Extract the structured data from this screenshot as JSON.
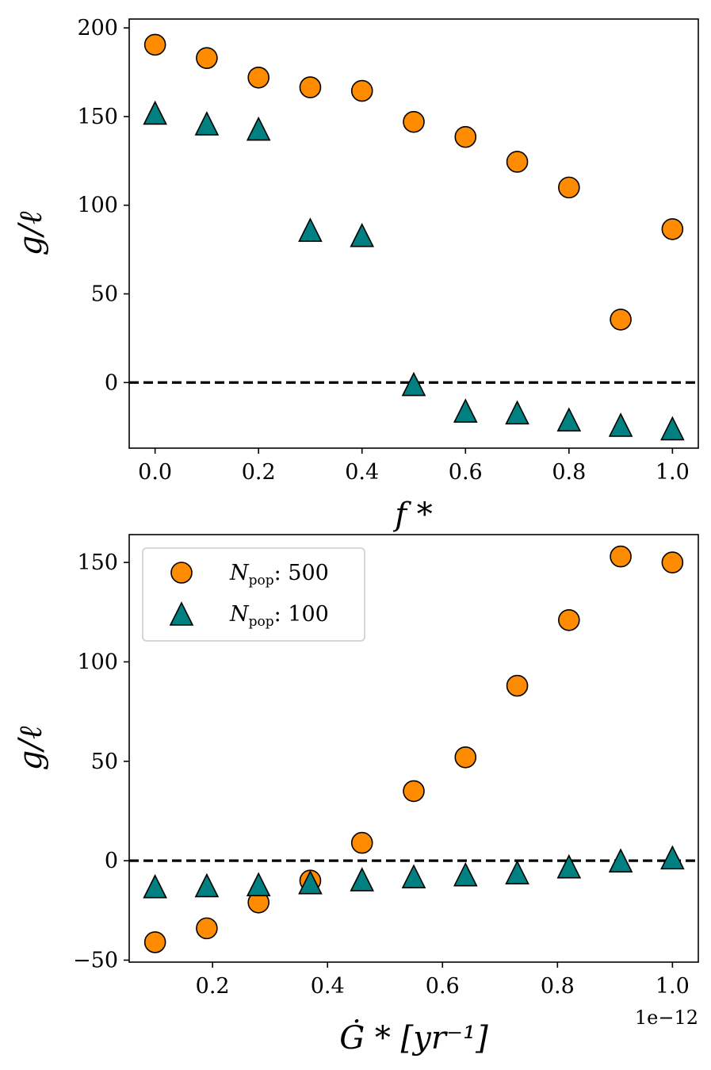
{
  "chart_data": [
    {
      "type": "scatter",
      "xlabel": "f *",
      "ylabel": "g/ℓ",
      "xlim": [
        -0.05,
        1.05
      ],
      "ylim": [
        -37,
        205
      ],
      "xticks": [
        0.0,
        0.2,
        0.4,
        0.6,
        0.8,
        1.0
      ],
      "xtick_labels": [
        "0.0",
        "0.2",
        "0.4",
        "0.6",
        "0.8",
        "1.0"
      ],
      "yticks": [
        0,
        50,
        100,
        150,
        200
      ],
      "ytick_labels": [
        "0",
        "50",
        "100",
        "150",
        "200"
      ],
      "reference_line": {
        "y": 0,
        "style": "dashed",
        "color": "#000000"
      },
      "legend": null,
      "series": [
        {
          "marker": "circle",
          "color": "#FF8C00",
          "x": [
            0.0,
            0.1,
            0.2,
            0.3,
            0.4,
            0.5,
            0.6,
            0.7,
            0.8,
            0.9,
            1.0
          ],
          "y": [
            190.5,
            183,
            172,
            166.5,
            164.5,
            147,
            138.5,
            124.5,
            110,
            35.5,
            86.5
          ]
        },
        {
          "marker": "triangle",
          "color": "#008080",
          "x": [
            0.0,
            0.1,
            0.2,
            0.3,
            0.4,
            0.5,
            0.6,
            0.7,
            0.8,
            0.9,
            1.0
          ],
          "y": [
            152,
            146,
            143,
            86,
            83,
            -1,
            -16,
            -17,
            -21,
            -24,
            -26
          ]
        }
      ]
    },
    {
      "type": "scatter",
      "xlabel": "Ġ *  [yr⁻¹]",
      "ylabel": "g/ℓ",
      "x_offset_label": "1e−12",
      "xlim": [
        0.055,
        1.045
      ],
      "ylim": [
        -51,
        164
      ],
      "xticks": [
        0.2,
        0.4,
        0.6,
        0.8,
        1.0
      ],
      "xtick_labels": [
        "0.2",
        "0.4",
        "0.6",
        "0.8",
        "1.0"
      ],
      "yticks": [
        -50,
        0,
        50,
        100,
        150
      ],
      "ytick_labels": [
        "−50",
        "0",
        "50",
        "100",
        "150"
      ],
      "reference_line": {
        "y": 0,
        "style": "dashed",
        "color": "#000000"
      },
      "legend": {
        "placement": "upper-left"
      },
      "series": [
        {
          "name": "N_pop: 500",
          "legend_main": "N",
          "legend_sub": "pop",
          "legend_value": ": 500",
          "marker": "circle",
          "color": "#FF8C00",
          "x": [
            0.1,
            0.19,
            0.28,
            0.37,
            0.46,
            0.55,
            0.64,
            0.73,
            0.82,
            0.91,
            1.0
          ],
          "y": [
            -41,
            -34,
            -21,
            -10,
            9,
            35,
            52,
            88,
            121,
            153,
            150
          ]
        },
        {
          "name": "N_pop: 100",
          "legend_main": "N",
          "legend_sub": "pop",
          "legend_value": ": 100",
          "marker": "triangle",
          "color": "#008080",
          "x": [
            0.1,
            0.19,
            0.28,
            0.37,
            0.46,
            0.55,
            0.64,
            0.73,
            0.82,
            0.91,
            1.0
          ],
          "y": [
            -13,
            -12.5,
            -12,
            -11,
            -9.5,
            -8,
            -7,
            -6,
            -3,
            0,
            1.5
          ]
        }
      ]
    }
  ]
}
